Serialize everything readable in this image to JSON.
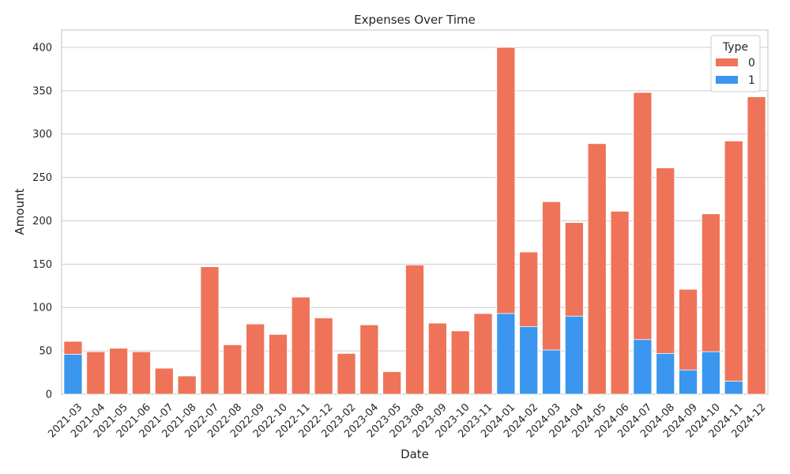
{
  "chart_data": {
    "type": "bar",
    "stacked": "overlay",
    "title": "Expenses Over Time",
    "xlabel": "Date",
    "ylabel": "Amount",
    "ylim": [
      0,
      420
    ],
    "yticks": [
      0,
      50,
      100,
      150,
      200,
      250,
      300,
      350,
      400
    ],
    "grid": true,
    "legend_title": "Type",
    "legend_placement": "top-right",
    "categories": [
      "2021-03",
      "2021-04",
      "2021-05",
      "2021-06",
      "2021-07",
      "2021-08",
      "2022-07",
      "2022-08",
      "2022-09",
      "2022-10",
      "2022-11",
      "2022-12",
      "2023-02",
      "2023-04",
      "2023-05",
      "2023-08",
      "2023-09",
      "2023-10",
      "2023-11",
      "2024-01",
      "2024-02",
      "2024-03",
      "2024-04",
      "2024-05",
      "2024-06",
      "2024-07",
      "2024-08",
      "2024-09",
      "2024-10",
      "2024-11",
      "2024-12"
    ],
    "series": [
      {
        "name": "0",
        "color": "#ee7359",
        "values": [
          61,
          49,
          53,
          49,
          30,
          21,
          147,
          57,
          81,
          69,
          112,
          88,
          47,
          80,
          26,
          149,
          82,
          73,
          93,
          400,
          164,
          222,
          198,
          289,
          211,
          348,
          261,
          121,
          208,
          292,
          343
        ]
      },
      {
        "name": "1",
        "color": "#3a96ee",
        "values": [
          46,
          null,
          null,
          null,
          null,
          null,
          null,
          null,
          null,
          null,
          null,
          null,
          null,
          null,
          null,
          null,
          null,
          null,
          null,
          93,
          78,
          51,
          90,
          null,
          null,
          63,
          47,
          28,
          49,
          15,
          null
        ]
      }
    ]
  }
}
